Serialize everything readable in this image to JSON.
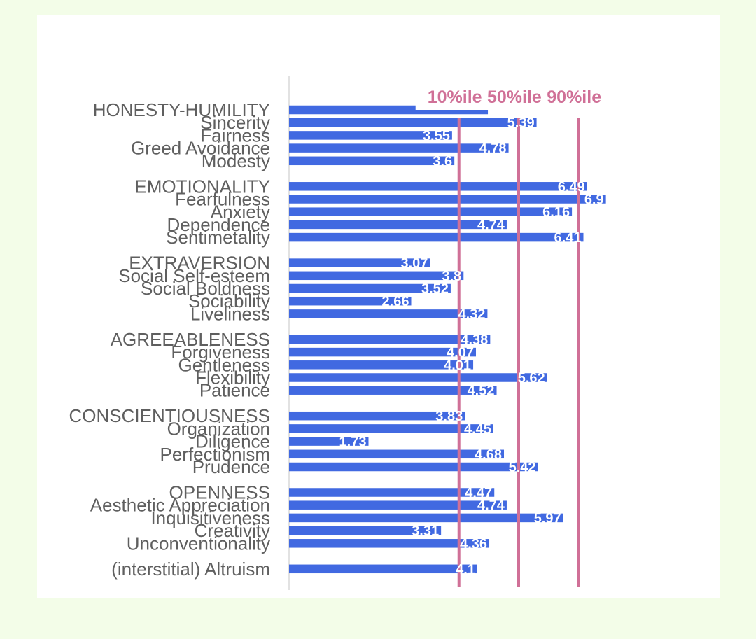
{
  "colors": {
    "page_background": "#f3fde8",
    "card_background": "#ffffff",
    "bar": "#4169e1",
    "reference_line": "#d07097",
    "axis": "#d9d9d9",
    "category_text": "#5f5f5f",
    "value_text": "#ffffff"
  },
  "chart_data": {
    "type": "bar",
    "orientation": "horizontal",
    "title": "",
    "xlabel": "",
    "ylabel": "",
    "xlim": [
      0,
      7
    ],
    "grid": false,
    "legend": "none",
    "categories": [
      "HONESTY-HUMILITY",
      "Sincerity",
      "Fairness",
      "Greed Avoidance",
      "Modesty",
      "EMOTIONALITY",
      "Fearfulness",
      "Anxiety",
      "Dependence",
      "Sentimetality",
      "EXTRAVERSION",
      "Social Self-esteem",
      "Social Boldness",
      "Sociability",
      "Liveliness",
      "AGREEABLENESS",
      "Forgiveness",
      "Gentleness",
      "Flexibility",
      "Patience",
      "CONSCIENTIOUSNESS",
      "Organization",
      "Diligence",
      "Perfectionism",
      "Prudence",
      "OPENNESS",
      "Aesthetic Appreciation",
      "Inquisitiveness",
      "Creativity",
      "Unconventionality",
      "(interstitial) Altruism"
    ],
    "groups": [
      5,
      5,
      5,
      5,
      5,
      5,
      1
    ],
    "values": [
      4.33,
      5.39,
      3.55,
      4.78,
      3.6,
      6.49,
      6.9,
      6.16,
      4.74,
      6.41,
      3.07,
      3.8,
      3.52,
      2.66,
      4.32,
      4.38,
      4.07,
      4.01,
      5.62,
      4.52,
      3.83,
      4.45,
      1.73,
      4.68,
      5.42,
      4.47,
      4.74,
      5.97,
      3.31,
      4.36,
      4.1
    ],
    "value_labels": [
      "",
      "5.39",
      "3.55",
      "4.78",
      "3.6",
      "6.49",
      "6.9",
      "6.16",
      "4.74",
      "6.41",
      "3.07",
      "3.8",
      "3.52",
      "2.66",
      "4.32",
      "4.38",
      "4.07",
      "4.01",
      "5.62",
      "4.52",
      "3.83",
      "4.45",
      "1.73",
      "4.68",
      "5.42",
      "4.47",
      "4.74",
      "5.97",
      "3.31",
      "4.36",
      "4.1"
    ],
    "reference_lines": [
      {
        "label": "10%ile",
        "value": 3.7
      },
      {
        "label": "50%ile",
        "value": 5.0
      },
      {
        "label": "90%ile",
        "value": 6.3
      }
    ]
  }
}
